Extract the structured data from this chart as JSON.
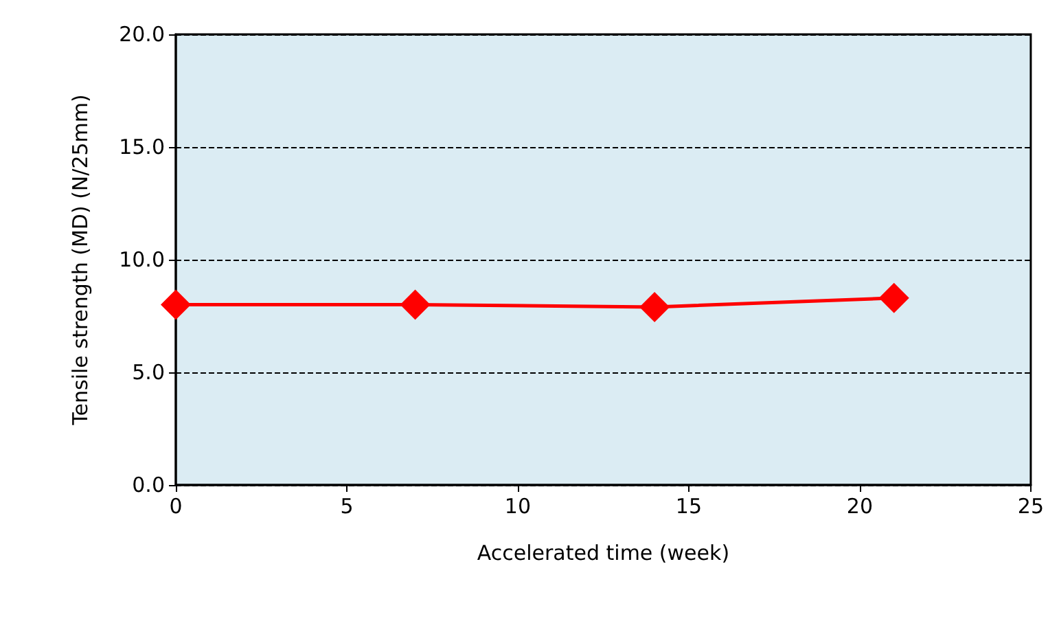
{
  "chart_data": {
    "type": "line",
    "xlabel": "Accelerated time (week)",
    "ylabel": "Tensile strength (MD) (N/25mm)",
    "x": [
      0,
      7,
      14,
      21
    ],
    "series": [
      {
        "color": "#ff0000",
        "values": [
          8.0,
          8.0,
          7.9,
          8.3
        ]
      }
    ],
    "xlim": [
      0,
      25
    ],
    "xticks": [
      0,
      5,
      10,
      15,
      20,
      25
    ],
    "ylim": [
      0,
      20
    ],
    "yticks": [
      {
        "value": 0,
        "label": "0.0"
      },
      {
        "value": 5,
        "label": "5.0"
      },
      {
        "value": 10,
        "label": "10.0"
      },
      {
        "value": 15,
        "label": "15.0"
      },
      {
        "value": 20,
        "label": "20.0"
      }
    ],
    "grid": "y",
    "marker": "diamond",
    "line_style": "solid"
  }
}
